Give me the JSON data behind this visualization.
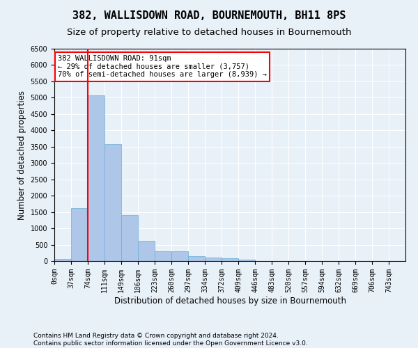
{
  "title": "382, WALLISDOWN ROAD, BOURNEMOUTH, BH11 8PS",
  "subtitle": "Size of property relative to detached houses in Bournemouth",
  "xlabel": "Distribution of detached houses by size in Bournemouth",
  "ylabel": "Number of detached properties",
  "footer_line1": "Contains HM Land Registry data © Crown copyright and database right 2024.",
  "footer_line2": "Contains public sector information licensed under the Open Government Licence v3.0.",
  "bin_labels": [
    "0sqm",
    "37sqm",
    "74sqm",
    "111sqm",
    "149sqm",
    "186sqm",
    "223sqm",
    "260sqm",
    "297sqm",
    "334sqm",
    "372sqm",
    "409sqm",
    "446sqm",
    "483sqm",
    "520sqm",
    "557sqm",
    "594sqm",
    "632sqm",
    "669sqm",
    "706sqm",
    "743sqm"
  ],
  "bar_values": [
    70,
    1630,
    5080,
    3580,
    1400,
    610,
    300,
    290,
    145,
    110,
    75,
    40,
    0,
    0,
    0,
    0,
    0,
    0,
    0,
    0,
    0
  ],
  "bar_color": "#aec6e8",
  "bar_edgecolor": "#6aaed6",
  "vline_x": 2,
  "vline_color": "red",
  "annotation_text": "382 WALLISDOWN ROAD: 91sqm\n← 29% of detached houses are smaller (3,757)\n70% of semi-detached houses are larger (8,939) →",
  "annotation_box_color": "white",
  "annotation_box_edgecolor": "red",
  "ylim": [
    0,
    6500
  ],
  "yticks": [
    0,
    500,
    1000,
    1500,
    2000,
    2500,
    3000,
    3500,
    4000,
    4500,
    5000,
    5500,
    6000,
    6500
  ],
  "background_color": "#e8f0f8",
  "axes_background_color": "#e8f0f8",
  "grid_color": "white",
  "title_fontsize": 11,
  "subtitle_fontsize": 9.5,
  "tick_fontsize": 7,
  "label_fontsize": 8.5,
  "footer_fontsize": 6.5,
  "annotation_fontsize": 7.5
}
